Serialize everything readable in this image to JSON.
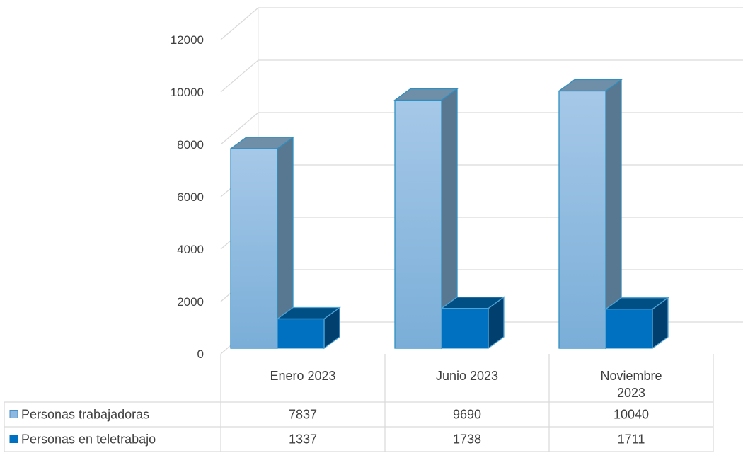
{
  "chart_data": {
    "type": "bar",
    "title": "",
    "xlabel": "",
    "ylabel": "",
    "ylim": [
      0,
      12000
    ],
    "yticks": [
      0,
      2000,
      4000,
      6000,
      8000,
      10000,
      12000
    ],
    "grid": true,
    "legend": "data-table",
    "categories": [
      "Enero 2023",
      "Junio 2023",
      "Noviembre 2023"
    ],
    "series": [
      {
        "name": "Personas trabajadoras",
        "values": [
          7837,
          9690,
          10040
        ],
        "color": "#8fb8e0"
      },
      {
        "name": "Personas en teletrabajo",
        "values": [
          1337,
          1738,
          1711
        ],
        "color": "#0070c0"
      }
    ]
  }
}
